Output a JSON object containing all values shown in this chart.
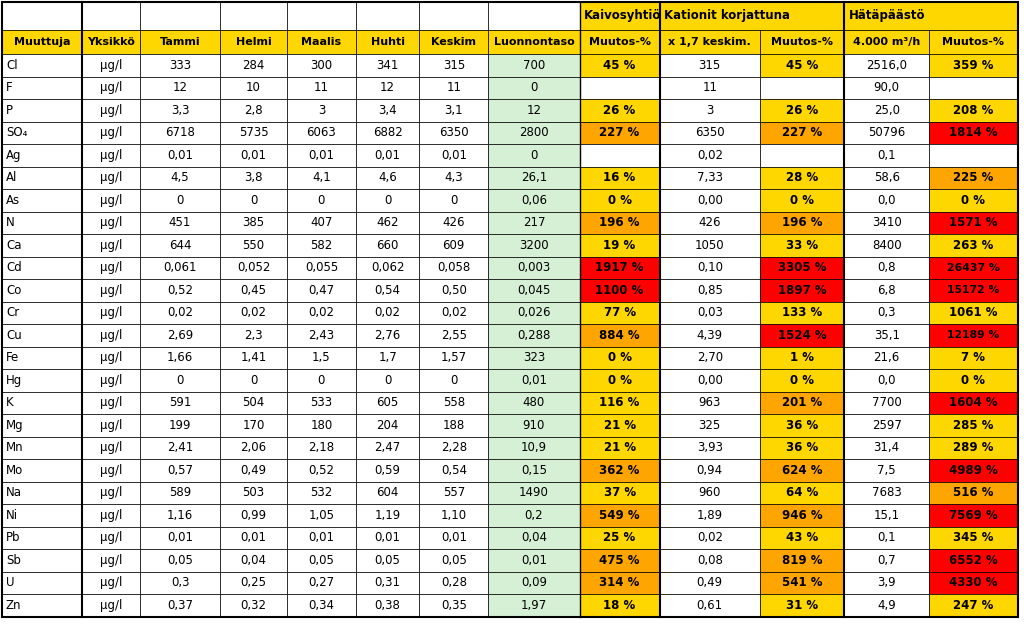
{
  "headers_row2": [
    "Muuttuja",
    "Yksikkö",
    "Tammi",
    "Helmi",
    "Maalis",
    "Huhti",
    "Keskim",
    "Luonnontaso",
    "Muutos-%",
    "x 1,7 keskim.",
    "Muutos-%",
    "4.000 m³/h",
    "Muutos-%"
  ],
  "rows": [
    [
      "Cl",
      "µg/l",
      "333",
      "284",
      "300",
      "341",
      "315",
      "700",
      "45 %",
      "315",
      "45 %",
      "2516,0",
      "359 %"
    ],
    [
      "F",
      "µg/l",
      "12",
      "10",
      "11",
      "12",
      "11",
      "0",
      "",
      "11",
      "",
      "90,0",
      ""
    ],
    [
      "P",
      "µg/l",
      "3,3",
      "2,8",
      "3",
      "3,4",
      "3,1",
      "12",
      "26 %",
      "3",
      "26 %",
      "25,0",
      "208 %"
    ],
    [
      "SO₄",
      "µg/l",
      "6718",
      "5735",
      "6063",
      "6882",
      "6350",
      "2800",
      "227 %",
      "6350",
      "227 %",
      "50796",
      "1814 %"
    ],
    [
      "Ag",
      "µg/l",
      "0,01",
      "0,01",
      "0,01",
      "0,01",
      "0,01",
      "0",
      "",
      "0,02",
      "",
      "0,1",
      ""
    ],
    [
      "Al",
      "µg/l",
      "4,5",
      "3,8",
      "4,1",
      "4,6",
      "4,3",
      "26,1",
      "16 %",
      "7,33",
      "28 %",
      "58,6",
      "225 %"
    ],
    [
      "As",
      "µg/l",
      "0",
      "0",
      "0",
      "0",
      "0",
      "0,06",
      "0 %",
      "0,00",
      "0 %",
      "0,0",
      "0 %"
    ],
    [
      "N",
      "µg/l",
      "451",
      "385",
      "407",
      "462",
      "426",
      "217",
      "196 %",
      "426",
      "196 %",
      "3410",
      "1571 %"
    ],
    [
      "Ca",
      "µg/l",
      "644",
      "550",
      "582",
      "660",
      "609",
      "3200",
      "19 %",
      "1050",
      "33 %",
      "8400",
      "263 %"
    ],
    [
      "Cd",
      "µg/l",
      "0,061",
      "0,052",
      "0,055",
      "0,062",
      "0,058",
      "0,003",
      "1917 %",
      "0,10",
      "3305 %",
      "0,8",
      "26437 %"
    ],
    [
      "Co",
      "µg/l",
      "0,52",
      "0,45",
      "0,47",
      "0,54",
      "0,50",
      "0,045",
      "1100 %",
      "0,85",
      "1897 %",
      "6,8",
      "15172 %"
    ],
    [
      "Cr",
      "µg/l",
      "0,02",
      "0,02",
      "0,02",
      "0,02",
      "0,02",
      "0,026",
      "77 %",
      "0,03",
      "133 %",
      "0,3",
      "1061 %"
    ],
    [
      "Cu",
      "µg/l",
      "2,69",
      "2,3",
      "2,43",
      "2,76",
      "2,55",
      "0,288",
      "884 %",
      "4,39",
      "1524 %",
      "35,1",
      "12189 %"
    ],
    [
      "Fe",
      "µg/l",
      "1,66",
      "1,41",
      "1,5",
      "1,7",
      "1,57",
      "323",
      "0 %",
      "2,70",
      "1 %",
      "21,6",
      "7 %"
    ],
    [
      "Hg",
      "µg/l",
      "0",
      "0",
      "0",
      "0",
      "0",
      "0,01",
      "0 %",
      "0,00",
      "0 %",
      "0,0",
      "0 %"
    ],
    [
      "K",
      "µg/l",
      "591",
      "504",
      "533",
      "605",
      "558",
      "480",
      "116 %",
      "963",
      "201 %",
      "7700",
      "1604 %"
    ],
    [
      "Mg",
      "µg/l",
      "199",
      "170",
      "180",
      "204",
      "188",
      "910",
      "21 %",
      "325",
      "36 %",
      "2597",
      "285 %"
    ],
    [
      "Mn",
      "µg/l",
      "2,41",
      "2,06",
      "2,18",
      "2,47",
      "2,28",
      "10,9",
      "21 %",
      "3,93",
      "36 %",
      "31,4",
      "289 %"
    ],
    [
      "Mo",
      "µg/l",
      "0,57",
      "0,49",
      "0,52",
      "0,59",
      "0,54",
      "0,15",
      "362 %",
      "0,94",
      "624 %",
      "7,5",
      "4989 %"
    ],
    [
      "Na",
      "µg/l",
      "589",
      "503",
      "532",
      "604",
      "557",
      "1490",
      "37 %",
      "960",
      "64 %",
      "7683",
      "516 %"
    ],
    [
      "Ni",
      "µg/l",
      "1,16",
      "0,99",
      "1,05",
      "1,19",
      "1,10",
      "0,2",
      "549 %",
      "1,89",
      "946 %",
      "15,1",
      "7569 %"
    ],
    [
      "Pb",
      "µg/l",
      "0,01",
      "0,01",
      "0,01",
      "0,01",
      "0,01",
      "0,04",
      "25 %",
      "0,02",
      "43 %",
      "0,1",
      "345 %"
    ],
    [
      "Sb",
      "µg/l",
      "0,05",
      "0,04",
      "0,05",
      "0,05",
      "0,05",
      "0,01",
      "475 %",
      "0,08",
      "819 %",
      "0,7",
      "6552 %"
    ],
    [
      "U",
      "µg/l",
      "0,3",
      "0,25",
      "0,27",
      "0,31",
      "0,28",
      "0,09",
      "314 %",
      "0,49",
      "541 %",
      "3,9",
      "4330 %"
    ],
    [
      "Zn",
      "µg/l",
      "0,37",
      "0,32",
      "0,34",
      "0,38",
      "0,35",
      "1,97",
      "18 %",
      "0,61",
      "31 %",
      "4,9",
      "247 %"
    ]
  ],
  "cell_colors": {
    "0_8": "#FFD700",
    "0_10": "#FFD700",
    "0_12": "#FFD700",
    "1_8": "#FFFFFF",
    "1_10": "#FFFFFF",
    "1_12": "#FFFFFF",
    "2_8": "#FFD700",
    "2_10": "#FFD700",
    "2_12": "#FFD700",
    "3_8": "#FFA500",
    "3_10": "#FFA500",
    "3_12": "#FF0000",
    "4_8": "#FFFFFF",
    "4_10": "#FFFFFF",
    "4_12": "#FFFFFF",
    "5_8": "#FFD700",
    "5_10": "#FFD700",
    "5_12": "#FFA500",
    "6_8": "#FFD700",
    "6_10": "#FFD700",
    "6_12": "#FFD700",
    "7_8": "#FFA500",
    "7_10": "#FFA500",
    "7_12": "#FF0000",
    "8_8": "#FFD700",
    "8_10": "#FFD700",
    "8_12": "#FFD700",
    "9_8": "#FF0000",
    "9_10": "#FF0000",
    "9_12": "#FF0000",
    "10_8": "#FF0000",
    "10_10": "#FF0000",
    "10_12": "#FF0000",
    "11_8": "#FFD700",
    "11_10": "#FFD700",
    "11_12": "#FFD700",
    "12_8": "#FFA500",
    "12_10": "#FF0000",
    "12_12": "#FF0000",
    "13_8": "#FFD700",
    "13_10": "#FFD700",
    "13_12": "#FFD700",
    "14_8": "#FFD700",
    "14_10": "#FFD700",
    "14_12": "#FFD700",
    "15_8": "#FFD700",
    "15_10": "#FFA500",
    "15_12": "#FF0000",
    "16_8": "#FFD700",
    "16_10": "#FFD700",
    "16_12": "#FFD700",
    "17_8": "#FFD700",
    "17_10": "#FFD700",
    "17_12": "#FFD700",
    "18_8": "#FFA500",
    "18_10": "#FFA500",
    "18_12": "#FF0000",
    "19_8": "#FFD700",
    "19_10": "#FFD700",
    "19_12": "#FFA500",
    "20_8": "#FFA500",
    "20_10": "#FFA500",
    "20_12": "#FF0000",
    "21_8": "#FFD700",
    "21_10": "#FFD700",
    "21_12": "#FFD700",
    "22_8": "#FFA500",
    "22_10": "#FFA500",
    "22_12": "#FF0000",
    "23_8": "#FFA500",
    "23_10": "#FFA500",
    "23_12": "#FF0000",
    "24_8": "#FFD700",
    "24_10": "#FFD700",
    "24_12": "#FFD700"
  },
  "yellow": "#FFD700",
  "white": "#FFFFFF",
  "light_green": "#D6F0D6",
  "orange": "#FFA500",
  "red": "#FF0000",
  "fig_width": 10.24,
  "fig_height": 6.36,
  "dpi": 100
}
